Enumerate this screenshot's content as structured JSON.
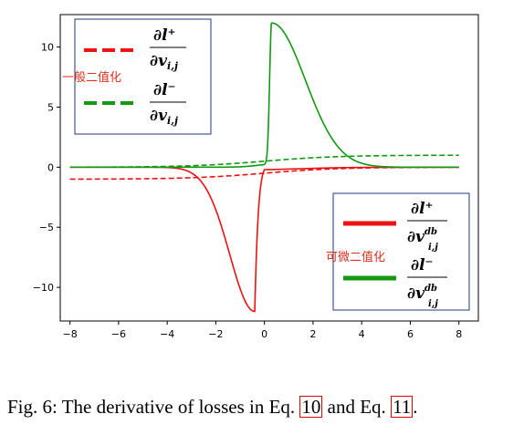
{
  "chart_data": {
    "type": "line",
    "xlim": [
      -8.4,
      8.8
    ],
    "ylim": [
      -12.8,
      12.7
    ],
    "xticks": [
      -8,
      -6,
      -4,
      -2,
      0,
      2,
      4,
      6,
      8
    ],
    "yticks": [
      -10,
      -5,
      0,
      5,
      10
    ],
    "xtick_labels": [
      "−8",
      "−6",
      "−4",
      "−2",
      "0",
      "2",
      "4",
      "6",
      "8"
    ],
    "ytick_labels": [
      "−10",
      "−5",
      "0",
      "5",
      "10"
    ],
    "grid": false,
    "series": [
      {
        "id": "binary_pos",
        "color": "#ee1111",
        "style": "dashed",
        "curve": "sigmoid_neg",
        "x": [
          -8,
          -6,
          -4,
          -2,
          0,
          2,
          4,
          6,
          8
        ],
        "y": [
          -1.0,
          -1.0,
          -0.95,
          -0.75,
          -0.5,
          -0.25,
          -0.05,
          0.0,
          0.0
        ]
      },
      {
        "id": "binary_neg",
        "color": "#119911",
        "style": "dashed",
        "curve": "sigmoid_pos",
        "x": [
          -8,
          -6,
          -4,
          -2,
          0,
          2,
          4,
          6,
          8
        ],
        "y": [
          0.0,
          0.0,
          0.05,
          0.25,
          0.5,
          0.75,
          0.95,
          1.0,
          1.0
        ]
      },
      {
        "id": "diff_pos",
        "color": "#ee1111",
        "style": "solid",
        "curve": "peak_neg",
        "x": [
          -8,
          -4,
          -2,
          -1,
          -0.4,
          0,
          1,
          4,
          8
        ],
        "y": [
          0,
          -0.3,
          -4,
          -8,
          -12,
          -0.5,
          -0.1,
          0,
          0
        ]
      },
      {
        "id": "diff_neg",
        "color": "#119911",
        "style": "solid",
        "curve": "peak_pos",
        "x": [
          -8,
          -1,
          0,
          0.3,
          1,
          2,
          3,
          4,
          6,
          8
        ],
        "y": [
          0,
          0,
          0.5,
          12,
          10.5,
          6,
          2.5,
          1,
          0.2,
          0
        ]
      }
    ],
    "legends": [
      {
        "position": "top-left",
        "label_cn": "一般二值化",
        "entries": [
          {
            "series": "binary_pos",
            "num": "∂l⁺",
            "den": "∂v",
            "den_sub": "i,j",
            "den_sup": ""
          },
          {
            "series": "binary_neg",
            "num": "∂l⁻",
            "den": "∂v",
            "den_sub": "i,j",
            "den_sup": ""
          }
        ]
      },
      {
        "position": "bottom-right",
        "label_cn": "可微二值化",
        "entries": [
          {
            "series": "diff_pos",
            "num": "∂l⁺",
            "den": "∂v",
            "den_sub": "i,j",
            "den_sup": "db"
          },
          {
            "series": "diff_neg",
            "num": "∂l⁻",
            "den": "∂v",
            "den_sub": "i,j",
            "den_sup": "db"
          }
        ]
      }
    ]
  },
  "caption": {
    "prefix": "Fig. 6: The derivative of losses in Eq.",
    "ref1": "10",
    "middle": "and Eq.",
    "ref2": "11",
    "suffix": "."
  }
}
